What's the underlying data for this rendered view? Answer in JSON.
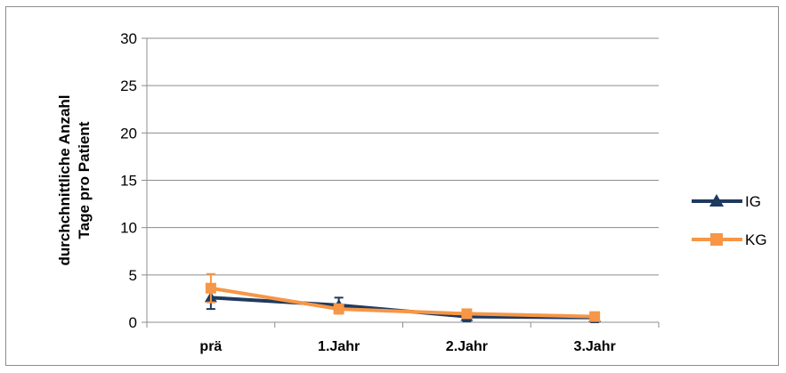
{
  "chart_data": {
    "type": "line",
    "categories": [
      "prä",
      "1.Jahr",
      "2.Jahr",
      "3.Jahr"
    ],
    "ylabel_lines": [
      "durchchnittliche Anzahl",
      "Tage pro Patient"
    ],
    "ylim": [
      0,
      30
    ],
    "yticks": [
      0,
      5,
      10,
      15,
      20,
      25,
      30
    ],
    "grid": true,
    "legend_position": "right",
    "series": [
      {
        "name": "IG",
        "color": "#1f3a5f",
        "marker": "triangle",
        "values": [
          2.6,
          1.8,
          0.6,
          0.5
        ],
        "error": [
          1.2,
          0.8,
          0.5,
          0.5
        ]
      },
      {
        "name": "KG",
        "color": "#f79646",
        "marker": "square",
        "values": [
          3.6,
          1.4,
          0.9,
          0.6
        ],
        "error": [
          1.5,
          0.5,
          0.4,
          0.3
        ]
      }
    ]
  }
}
